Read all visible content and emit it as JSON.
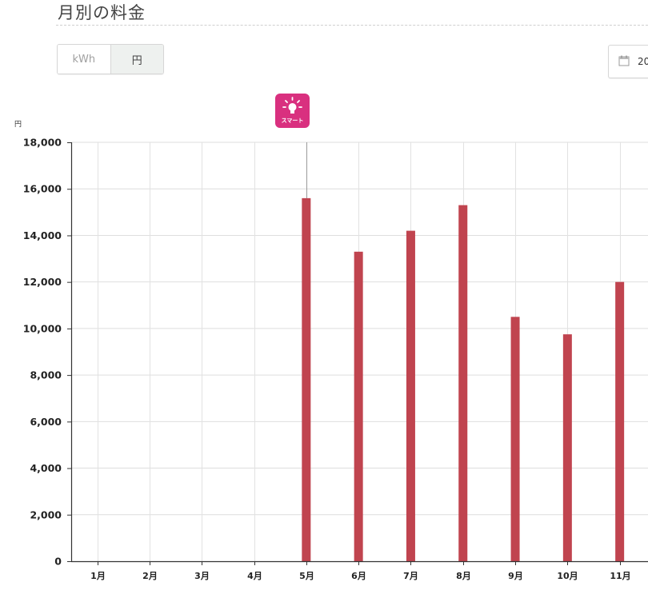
{
  "page": {
    "title": "月別の料金"
  },
  "toggle": {
    "kwh_label": "kWh",
    "yen_label": "円"
  },
  "date_picker": {
    "text": "20"
  },
  "smart_badge": {
    "label": "スマート"
  },
  "chart_data": {
    "type": "bar",
    "ylabel": "円",
    "ylim": [
      0,
      18000
    ],
    "yticks": [
      0,
      2000,
      4000,
      6000,
      8000,
      10000,
      12000,
      14000,
      16000,
      18000
    ],
    "ytick_labels": [
      "0",
      "2,000",
      "4,000",
      "6,000",
      "8,000",
      "10,000",
      "12,000",
      "14,000",
      "16,000",
      "18,000"
    ],
    "categories": [
      "1月",
      "2月",
      "3月",
      "4月",
      "5月",
      "6月",
      "7月",
      "8月",
      "9月",
      "10月",
      "11月"
    ],
    "values": [
      0,
      0,
      0,
      0,
      15600,
      13300,
      14200,
      15300,
      10500,
      9750,
      12000
    ],
    "grid": true,
    "bar_color": "#c0444f",
    "marker_category": "5月"
  },
  "colors": {
    "smart_badge": "#d9307f",
    "bar": "#c0444f"
  }
}
